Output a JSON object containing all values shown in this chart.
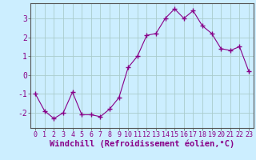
{
  "x": [
    0,
    1,
    2,
    3,
    4,
    5,
    6,
    7,
    8,
    9,
    10,
    11,
    12,
    13,
    14,
    15,
    16,
    17,
    18,
    19,
    20,
    21,
    22,
    23
  ],
  "y": [
    -1.0,
    -1.9,
    -2.3,
    -2.0,
    -0.9,
    -2.1,
    -2.1,
    -2.2,
    -1.8,
    -1.2,
    0.4,
    1.0,
    2.1,
    2.2,
    3.0,
    3.5,
    3.0,
    3.4,
    2.6,
    2.2,
    1.4,
    1.3,
    1.5,
    0.2
  ],
  "line_color": "#880088",
  "marker": "+",
  "marker_size": 4,
  "bg_color": "#cceeff",
  "grid_color": "#aacccc",
  "xlim": [
    -0.5,
    23.5
  ],
  "ylim": [
    -2.8,
    3.8
  ],
  "yticks": [
    -2,
    -1,
    0,
    1,
    2,
    3
  ],
  "xticks": [
    0,
    1,
    2,
    3,
    4,
    5,
    6,
    7,
    8,
    9,
    10,
    11,
    12,
    13,
    14,
    15,
    16,
    17,
    18,
    19,
    20,
    21,
    22,
    23
  ],
  "xtick_labels": [
    "0",
    "1",
    "2",
    "3",
    "4",
    "5",
    "6",
    "7",
    "8",
    "9",
    "10",
    "11",
    "12",
    "13",
    "14",
    "15",
    "16",
    "17",
    "18",
    "19",
    "20",
    "21",
    "22",
    "23"
  ],
  "tick_color": "#880088",
  "spine_color": "#555555",
  "font_size_label": 6.5,
  "font_size_tick": 6.0,
  "xlabel": "Windchill (Refroidissement éolien,°C)"
}
